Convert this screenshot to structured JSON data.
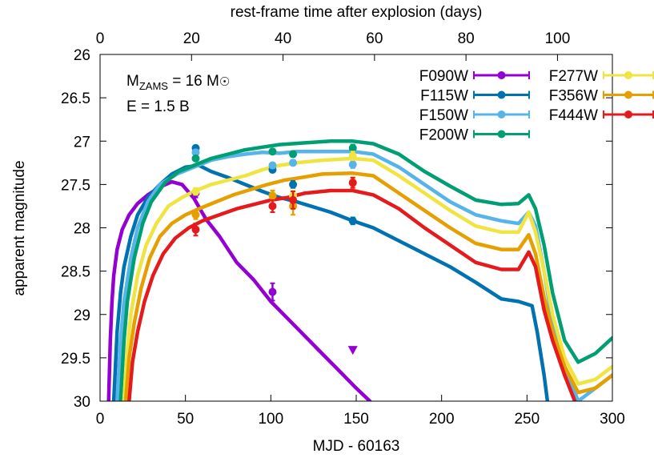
{
  "chart_data": {
    "type": "line",
    "xlabel": "MJD - 60163",
    "ylabel": "apparent magnitude",
    "x2label": "rest-frame time after explosion (days)",
    "xlim": [
      0,
      300
    ],
    "ylim": [
      26,
      30
    ],
    "y_inverted": true,
    "x2lim": [
      0,
      112
    ],
    "xticks": [
      0,
      50,
      100,
      150,
      200,
      250,
      300
    ],
    "yticks": [
      "26",
      "26.5",
      "27",
      "27.5",
      "28",
      "28.5",
      "29",
      "29.5",
      "30"
    ],
    "x2ticks": [
      0,
      20,
      40,
      60,
      80,
      100
    ],
    "grid": false,
    "legend_position": "top-right",
    "annotations": {
      "mzams_prefix": "M",
      "mzams_sub": "ZAMS",
      "mzams_value": " = 16 M",
      "mzams_symbol": "☉",
      "energy": "E = 1.5 B"
    },
    "series": [
      {
        "name": "F090W",
        "color": "#9400d3",
        "model": [
          [
            5,
            30
          ],
          [
            6,
            29.3
          ],
          [
            7,
            28.85
          ],
          [
            8,
            28.55
          ],
          [
            10,
            28.25
          ],
          [
            13,
            28.02
          ],
          [
            17,
            27.85
          ],
          [
            22,
            27.72
          ],
          [
            28,
            27.62
          ],
          [
            35,
            27.53
          ],
          [
            42,
            27.47
          ],
          [
            48,
            27.5
          ],
          [
            55,
            27.66
          ],
          [
            62,
            27.9
          ],
          [
            70,
            28.1
          ],
          [
            80,
            28.4
          ],
          [
            90,
            28.6
          ],
          [
            100,
            28.85
          ],
          [
            110,
            29.05
          ],
          [
            120,
            29.25
          ],
          [
            130,
            29.45
          ],
          [
            140,
            29.65
          ],
          [
            150,
            29.85
          ],
          [
            158,
            30
          ]
        ],
        "points": [
          [
            56,
            27.6,
            0.05
          ],
          [
            101,
            28.74,
            0.1
          ]
        ],
        "upper_limits": [
          [
            148,
            29.41
          ]
        ]
      },
      {
        "name": "F115W",
        "color": "#0072b2",
        "model": [
          [
            8,
            30
          ],
          [
            10,
            29.2
          ],
          [
            12,
            28.75
          ],
          [
            14,
            28.45
          ],
          [
            18,
            28.1
          ],
          [
            22,
            27.85
          ],
          [
            28,
            27.65
          ],
          [
            35,
            27.5
          ],
          [
            42,
            27.38
          ],
          [
            50,
            27.3
          ],
          [
            58,
            27.28
          ],
          [
            65,
            27.35
          ],
          [
            75,
            27.42
          ],
          [
            85,
            27.5
          ],
          [
            95,
            27.58
          ],
          [
            105,
            27.65
          ],
          [
            115,
            27.7
          ],
          [
            125,
            27.76
          ],
          [
            135,
            27.82
          ],
          [
            148,
            27.92
          ],
          [
            160,
            28.0
          ],
          [
            175,
            28.15
          ],
          [
            190,
            28.3
          ],
          [
            205,
            28.45
          ],
          [
            220,
            28.63
          ],
          [
            235,
            28.82
          ],
          [
            245,
            28.85
          ],
          [
            253,
            28.9
          ],
          [
            256,
            29.2
          ],
          [
            260,
            29.7
          ],
          [
            262,
            30
          ]
        ],
        "points": [
          [
            56,
            27.08,
            0.03
          ],
          [
            101,
            27.33,
            0.03
          ],
          [
            113,
            27.5,
            0.04
          ],
          [
            148,
            27.92,
            0.04
          ]
        ],
        "upper_limits": []
      },
      {
        "name": "F150W",
        "color": "#56b4e9",
        "model": [
          [
            10,
            30
          ],
          [
            12,
            29.3
          ],
          [
            14,
            28.85
          ],
          [
            18,
            28.35
          ],
          [
            22,
            28.0
          ],
          [
            28,
            27.7
          ],
          [
            35,
            27.5
          ],
          [
            45,
            27.38
          ],
          [
            55,
            27.3
          ],
          [
            65,
            27.22
          ],
          [
            75,
            27.18
          ],
          [
            85,
            27.15
          ],
          [
            95,
            27.13
          ],
          [
            105,
            27.14
          ],
          [
            115,
            27.12
          ],
          [
            130,
            27.12
          ],
          [
            148,
            27.12
          ],
          [
            160,
            27.15
          ],
          [
            175,
            27.3
          ],
          [
            190,
            27.5
          ],
          [
            205,
            27.7
          ],
          [
            220,
            27.85
          ],
          [
            235,
            27.92
          ],
          [
            245,
            27.95
          ],
          [
            251,
            27.82
          ],
          [
            255,
            27.98
          ],
          [
            260,
            28.5
          ],
          [
            265,
            29.1
          ],
          [
            272,
            29.6
          ],
          [
            280,
            30
          ],
          [
            290,
            29.85
          ],
          [
            300,
            29.7
          ]
        ],
        "points": [
          [
            56,
            27.13,
            0.03
          ],
          [
            101,
            27.28,
            0.03
          ],
          [
            113,
            27.25,
            0.03
          ],
          [
            148,
            27.27,
            0.04
          ]
        ],
        "upper_limits": []
      },
      {
        "name": "F200W",
        "color": "#009e73",
        "model": [
          [
            12,
            30
          ],
          [
            14,
            29.3
          ],
          [
            16,
            28.85
          ],
          [
            20,
            28.35
          ],
          [
            25,
            27.95
          ],
          [
            30,
            27.7
          ],
          [
            38,
            27.48
          ],
          [
            46,
            27.35
          ],
          [
            55,
            27.28
          ],
          [
            65,
            27.2
          ],
          [
            75,
            27.15
          ],
          [
            85,
            27.1
          ],
          [
            95,
            27.07
          ],
          [
            105,
            27.04
          ],
          [
            120,
            27.02
          ],
          [
            135,
            27.0
          ],
          [
            148,
            27.0
          ],
          [
            160,
            27.03
          ],
          [
            175,
            27.15
          ],
          [
            190,
            27.35
          ],
          [
            205,
            27.52
          ],
          [
            220,
            27.68
          ],
          [
            235,
            27.73
          ],
          [
            245,
            27.72
          ],
          [
            251,
            27.62
          ],
          [
            255,
            27.78
          ],
          [
            260,
            28.2
          ],
          [
            265,
            28.75
          ],
          [
            272,
            29.3
          ],
          [
            280,
            29.55
          ],
          [
            290,
            29.45
          ],
          [
            300,
            29.27
          ]
        ],
        "points": [
          [
            56,
            27.2,
            0.03
          ],
          [
            101,
            27.12,
            0.03
          ],
          [
            113,
            27.15,
            0.03
          ],
          [
            148,
            27.08,
            0.04
          ]
        ],
        "upper_limits": []
      },
      {
        "name": "F277W",
        "color": "#f0e442",
        "model": [
          [
            14,
            30
          ],
          [
            16,
            29.4
          ],
          [
            18,
            29.0
          ],
          [
            22,
            28.55
          ],
          [
            27,
            28.2
          ],
          [
            33,
            27.95
          ],
          [
            40,
            27.75
          ],
          [
            48,
            27.65
          ],
          [
            55,
            27.58
          ],
          [
            65,
            27.5
          ],
          [
            75,
            27.45
          ],
          [
            85,
            27.4
          ],
          [
            95,
            27.33
          ],
          [
            105,
            27.28
          ],
          [
            115,
            27.25
          ],
          [
            130,
            27.22
          ],
          [
            148,
            27.2
          ],
          [
            160,
            27.22
          ],
          [
            175,
            27.4
          ],
          [
            190,
            27.6
          ],
          [
            205,
            27.8
          ],
          [
            220,
            27.98
          ],
          [
            235,
            28.05
          ],
          [
            245,
            28.05
          ],
          [
            251,
            27.82
          ],
          [
            255,
            28.05
          ],
          [
            260,
            28.5
          ],
          [
            265,
            29.0
          ],
          [
            272,
            29.5
          ],
          [
            280,
            29.8
          ],
          [
            290,
            29.75
          ],
          [
            300,
            29.6
          ]
        ],
        "points": [
          [
            56,
            27.58,
            0.04
          ],
          [
            101,
            27.63,
            0.05
          ],
          [
            113,
            27.63,
            0.06
          ],
          [
            148,
            27.17,
            0.05
          ]
        ],
        "upper_limits": []
      },
      {
        "name": "F356W",
        "color": "#e69f00",
        "model": [
          [
            15,
            30
          ],
          [
            17,
            29.5
          ],
          [
            20,
            29.1
          ],
          [
            24,
            28.7
          ],
          [
            29,
            28.35
          ],
          [
            35,
            28.1
          ],
          [
            42,
            27.95
          ],
          [
            50,
            27.85
          ],
          [
            58,
            27.78
          ],
          [
            68,
            27.7
          ],
          [
            78,
            27.62
          ],
          [
            88,
            27.56
          ],
          [
            98,
            27.5
          ],
          [
            108,
            27.45
          ],
          [
            118,
            27.42
          ],
          [
            130,
            27.38
          ],
          [
            148,
            27.37
          ],
          [
            160,
            27.4
          ],
          [
            175,
            27.6
          ],
          [
            190,
            27.8
          ],
          [
            205,
            28.0
          ],
          [
            220,
            28.18
          ],
          [
            235,
            28.25
          ],
          [
            245,
            28.25
          ],
          [
            251,
            28.08
          ],
          [
            255,
            28.3
          ],
          [
            260,
            28.8
          ],
          [
            265,
            29.2
          ],
          [
            272,
            29.6
          ],
          [
            280,
            29.9
          ],
          [
            290,
            29.85
          ],
          [
            300,
            29.7
          ]
        ],
        "points": [
          [
            56,
            27.85,
            0.05
          ],
          [
            101,
            27.63,
            0.06
          ],
          [
            113,
            27.75,
            0.1
          ],
          [
            148,
            27.48,
            0.05
          ]
        ],
        "upper_limits": []
      },
      {
        "name": "F444W",
        "color": "#e41a1c",
        "model": [
          [
            17,
            30
          ],
          [
            19,
            29.55
          ],
          [
            22,
            29.2
          ],
          [
            26,
            28.85
          ],
          [
            31,
            28.55
          ],
          [
            37,
            28.3
          ],
          [
            44,
            28.12
          ],
          [
            52,
            28.0
          ],
          [
            60,
            27.92
          ],
          [
            70,
            27.85
          ],
          [
            80,
            27.78
          ],
          [
            90,
            27.73
          ],
          [
            100,
            27.68
          ],
          [
            110,
            27.65
          ],
          [
            120,
            27.6
          ],
          [
            135,
            27.57
          ],
          [
            148,
            27.57
          ],
          [
            160,
            27.62
          ],
          [
            175,
            27.78
          ],
          [
            190,
            28.0
          ],
          [
            205,
            28.2
          ],
          [
            220,
            28.4
          ],
          [
            235,
            28.48
          ],
          [
            245,
            28.48
          ],
          [
            251,
            28.28
          ],
          [
            255,
            28.45
          ],
          [
            260,
            28.95
          ],
          [
            265,
            29.3
          ],
          [
            272,
            29.7
          ],
          [
            278,
            30
          ]
        ],
        "points": [
          [
            56,
            28.02,
            0.07
          ],
          [
            101,
            27.75,
            0.07
          ],
          [
            113,
            27.68,
            0.1
          ],
          [
            148,
            27.48,
            0.06
          ]
        ],
        "upper_limits": []
      }
    ]
  }
}
